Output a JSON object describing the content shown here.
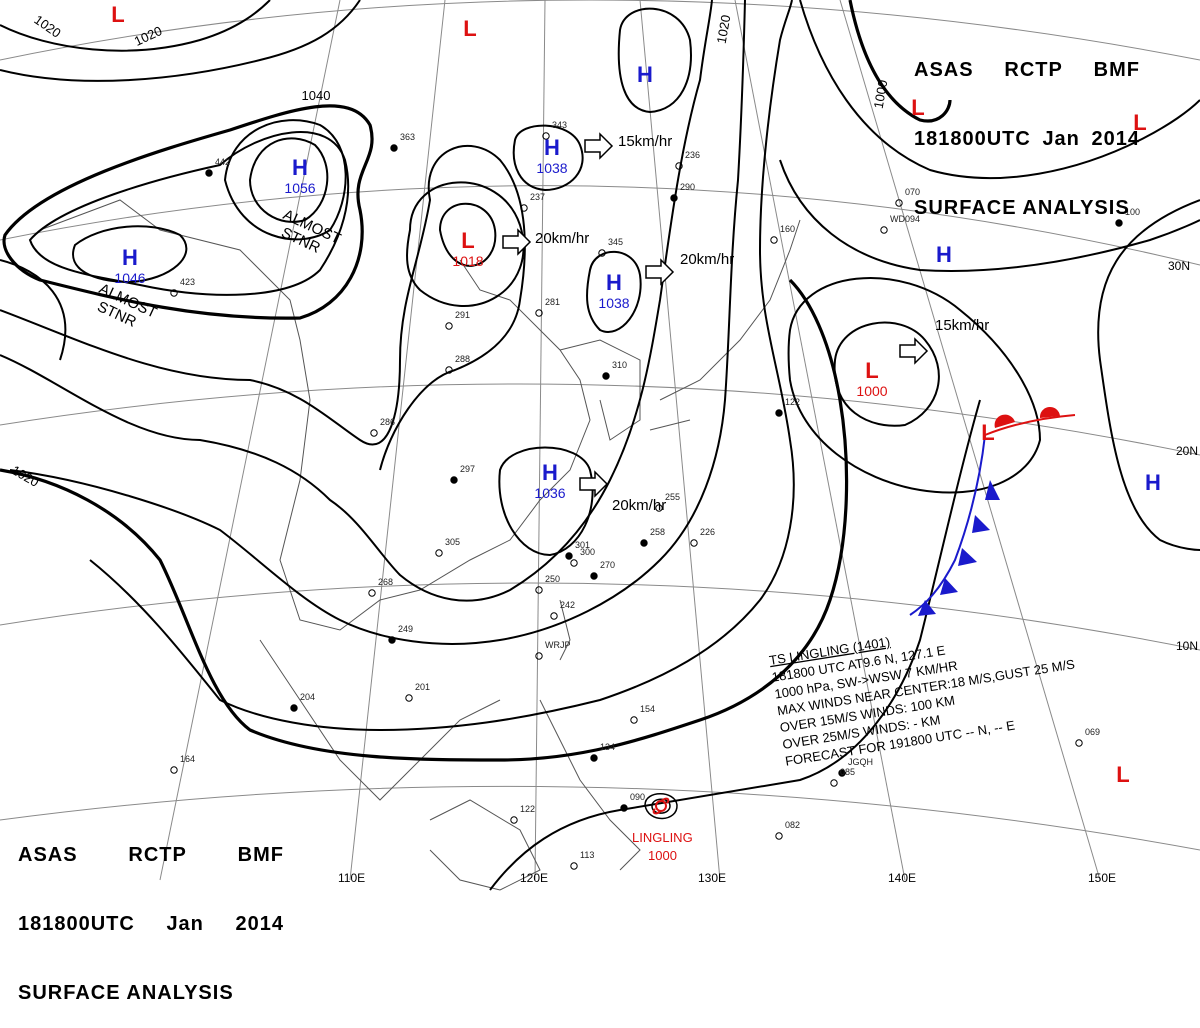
{
  "header": {
    "line1": [
      "ASAS",
      "RCTP",
      "BMF"
    ],
    "line2": [
      "181800UTC",
      "Jan",
      "2014"
    ],
    "line3": "SURFACE ANALYSIS"
  },
  "colors": {
    "high": "#1a1acc",
    "low": "#dd1111",
    "isobar": "#000000",
    "grid": "#8a8a8a",
    "coast": "#555555",
    "warm_front": "#dd1111",
    "cold_front": "#1a1acc"
  },
  "longitude_labels": [
    "110E",
    "120E",
    "130E",
    "140E",
    "150E"
  ],
  "latitude_labels": [
    "30N",
    "20N",
    "10N"
  ],
  "isobar_labels": [
    "1020",
    "1020",
    "1040",
    "1020",
    "1000",
    "1020"
  ],
  "pressure_centers": [
    {
      "type": "H",
      "value": "1056"
    },
    {
      "type": "H",
      "value": "1046"
    },
    {
      "type": "H",
      "value": "1038"
    },
    {
      "type": "H",
      "value": "1038"
    },
    {
      "type": "H",
      "value": "1036"
    },
    {
      "type": "H",
      "value": ""
    },
    {
      "type": "H",
      "value": ""
    },
    {
      "type": "H",
      "value": ""
    },
    {
      "type": "L",
      "value": "1018"
    },
    {
      "type": "L",
      "value": "1000"
    },
    {
      "type": "L",
      "value": ""
    },
    {
      "type": "L",
      "value": ""
    },
    {
      "type": "L",
      "value": ""
    },
    {
      "type": "L",
      "value": ""
    },
    {
      "type": "L",
      "value": ""
    },
    {
      "type": "L",
      "value": ""
    }
  ],
  "motion_vectors": [
    "15km/hr",
    "20km/hr",
    "20km/hr",
    "20km/hr",
    "15km/hr"
  ],
  "annotations": [
    "ALMOST\nSTNR",
    "ALMOST\nSTNR"
  ],
  "typhoon": {
    "name": "LINGLING",
    "pressure": "1000",
    "bulletin": [
      "TS  LINGLING  (1401)",
      "181800 UTC  AT9.6 N, 127.1 E",
      "1000 hPa, SW->WSW  7 KM/HR",
      "MAX WINDS NEAR CENTER:18 M/S,GUST 25 M/S",
      "OVER 15M/S WINDS: 100 KM",
      "OVER 25M/S WINDS: - KM",
      "FORECAST FOR 191800 UTC -- N, -- E"
    ]
  },
  "station_labels": [
    "363",
    "343",
    "345",
    "310",
    "291",
    "288",
    "297",
    "286",
    "281",
    "301",
    "305",
    "268",
    "249",
    "242",
    "250",
    "258",
    "255",
    "226",
    "204",
    "201",
    "154",
    "134",
    "113",
    "122",
    "270",
    "164",
    "423",
    "442",
    "237",
    "236",
    "290",
    "300",
    "082",
    "090",
    "069",
    "085",
    "122",
    "160",
    "070",
    "100",
    "WD094",
    "WRJP",
    "JGQH"
  ]
}
